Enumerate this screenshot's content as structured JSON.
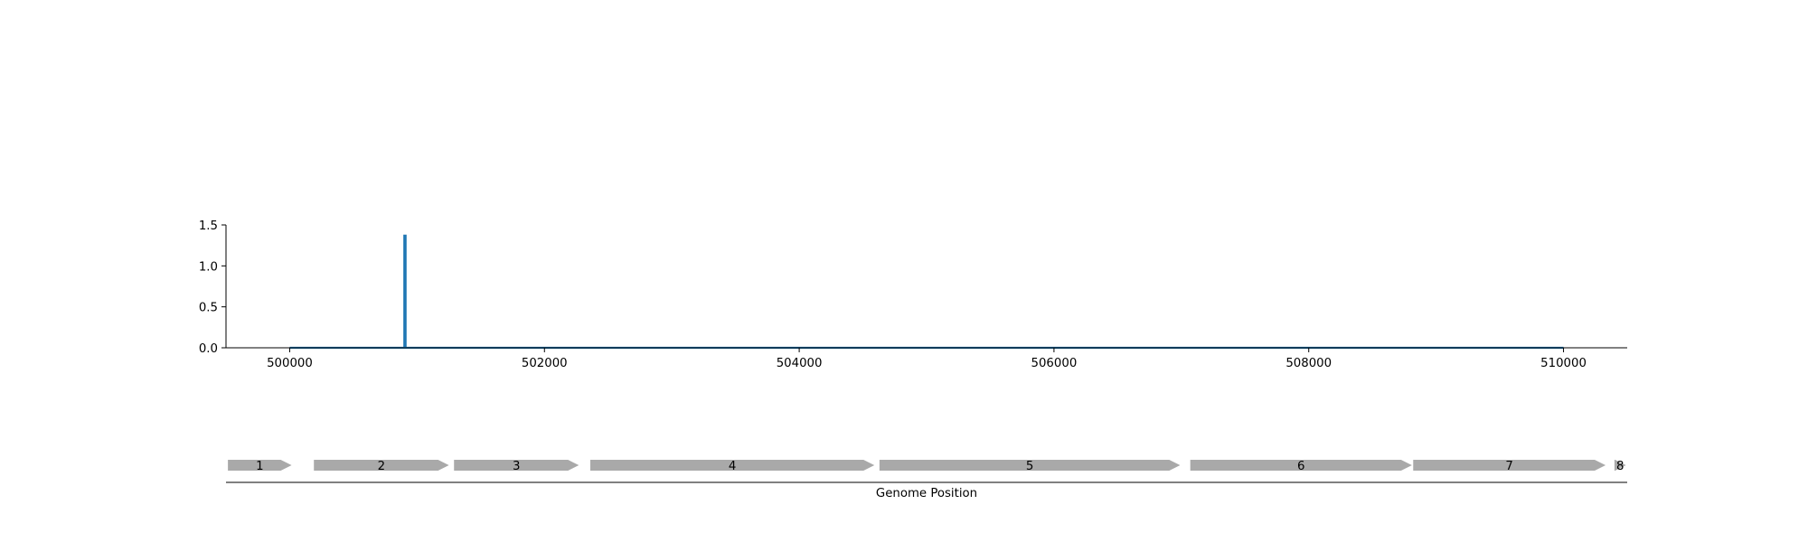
{
  "chart_data": [
    {
      "type": "line",
      "title": "",
      "xlabel": "",
      "ylabel": "",
      "xlim": [
        499500,
        510500
      ],
      "ylim": [
        0,
        1.5
      ],
      "xticks": [
        500000,
        502000,
        504000,
        506000,
        508000,
        510000
      ],
      "xtick_labels": [
        "500000",
        "502000",
        "504000",
        "506000",
        "508000",
        "510000"
      ],
      "yticks": [
        0,
        0.5,
        1,
        1.5
      ],
      "ytick_labels": [
        "0.0",
        "0.5",
        "1.0",
        "1.5"
      ],
      "grid": false,
      "series": [
        {
          "color": "#1f77b4",
          "x": [
            500000,
            500900,
            500900,
            500910,
            500910,
            510000
          ],
          "y": [
            0,
            0,
            1.37,
            1.37,
            0,
            0
          ]
        }
      ]
    },
    {
      "type": "gene_track",
      "xlabel": "Genome Position",
      "xlim": [
        499500,
        510500
      ],
      "color": "#a9a9a9",
      "genes": [
        {
          "label": "1",
          "start": 499515,
          "end": 500015,
          "strand": "+"
        },
        {
          "label": "2",
          "start": 500190,
          "end": 501250,
          "strand": "+"
        },
        {
          "label": "3",
          "start": 501290,
          "end": 502270,
          "strand": "+"
        },
        {
          "label": "4",
          "start": 502360,
          "end": 504590,
          "strand": "+"
        },
        {
          "label": "5",
          "start": 504630,
          "end": 506990,
          "strand": "+"
        },
        {
          "label": "6",
          "start": 507070,
          "end": 508810,
          "strand": "+"
        },
        {
          "label": "7",
          "start": 508820,
          "end": 510330,
          "strand": "+"
        },
        {
          "label": "8",
          "start": 510400,
          "end": 510490,
          "strand": "+"
        }
      ]
    }
  ]
}
